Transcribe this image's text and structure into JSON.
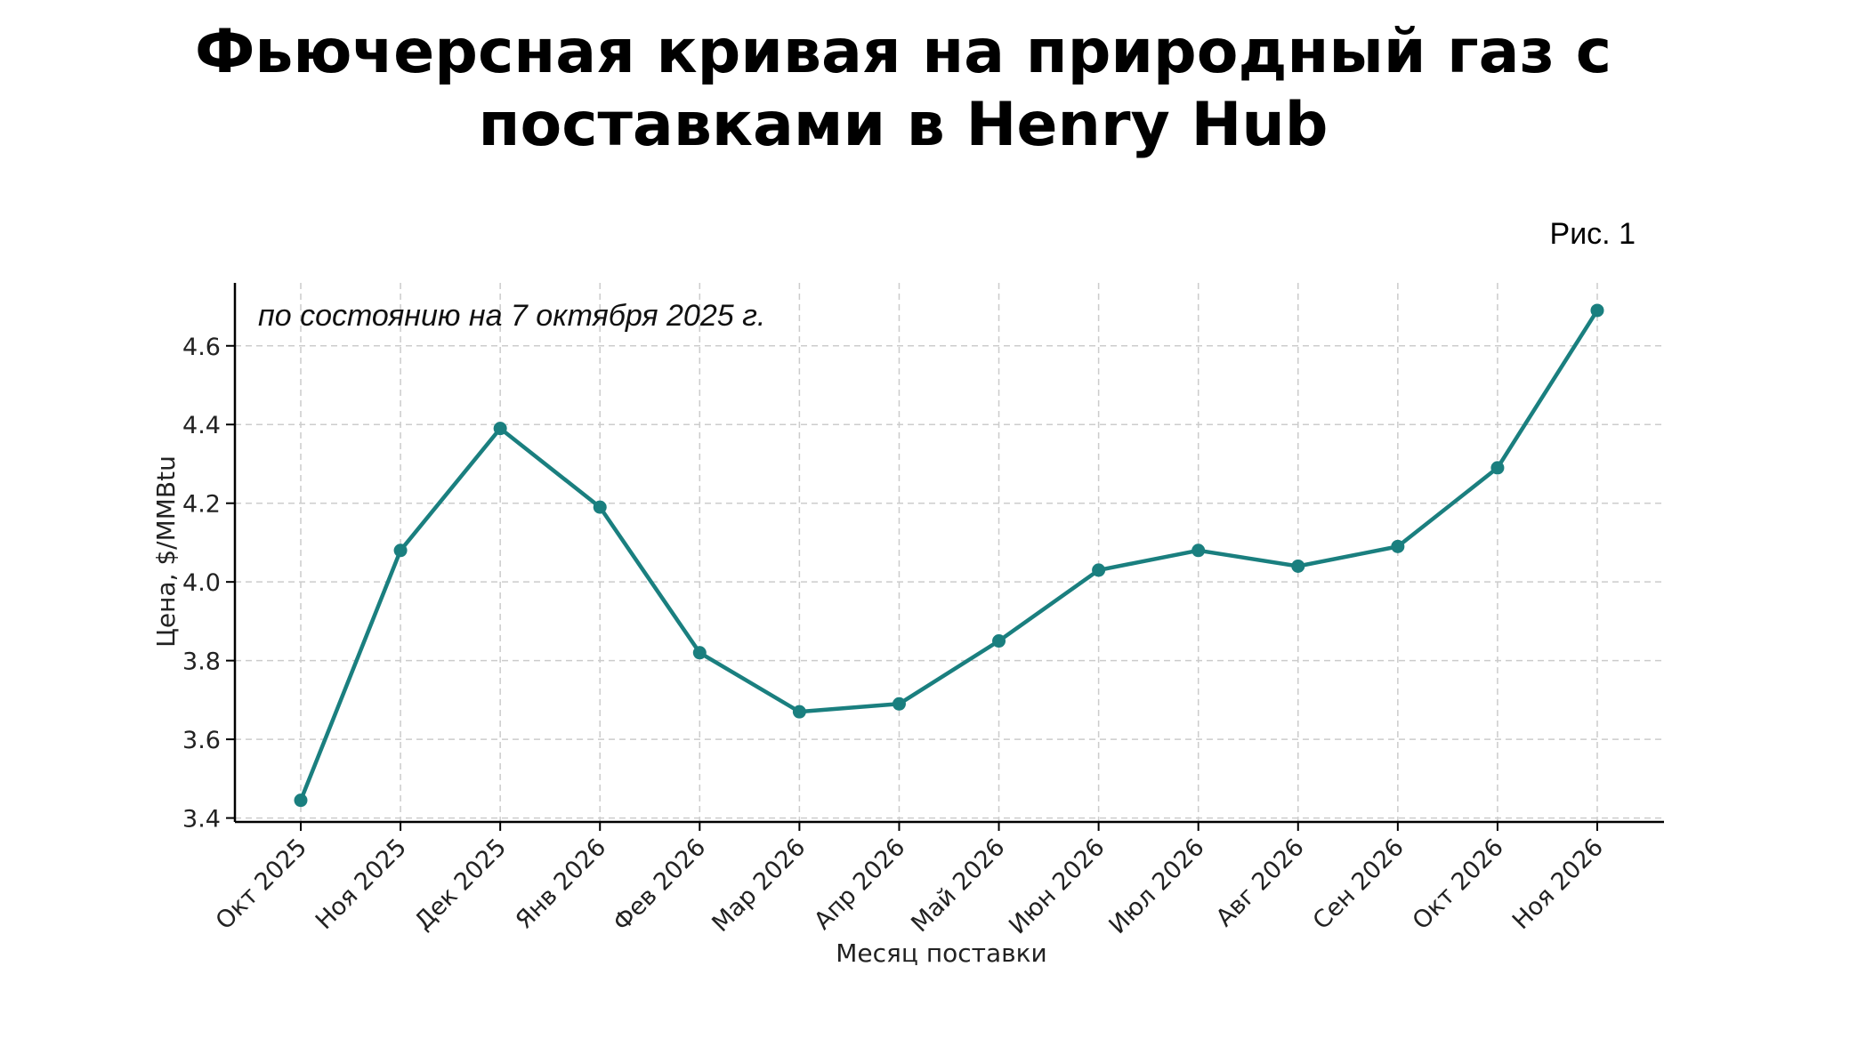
{
  "title_line1": "Фьючерсная кривая на природный газ с",
  "title_line2": "поставками в Henry Hub",
  "figure_label": "Рис. 1",
  "chart_data": {
    "type": "line",
    "annotation": "по состоянию на 7 октября 2025 г.",
    "xlabel": "Месяц поставки",
    "ylabel": "Цена, $/MMBtu",
    "categories": [
      "Окт 2025",
      "Ноя 2025",
      "Дек 2025",
      "Янв 2026",
      "Фев 2026",
      "Мар 2026",
      "Апр 2026",
      "Май 2026",
      "Июн 2026",
      "Июл 2026",
      "Авг 2026",
      "Сен 2026",
      "Окт 2026",
      "Ноя 2026"
    ],
    "series": [
      {
        "values": [
          3.445,
          4.08,
          4.39,
          4.19,
          3.82,
          3.67,
          3.69,
          3.85,
          4.03,
          4.08,
          4.04,
          4.09,
          4.29,
          4.69
        ]
      }
    ],
    "yticks": [
      "3.4",
      "3.6",
      "3.8",
      "4.0",
      "4.2",
      "4.4",
      "4.6"
    ],
    "ylim": [
      3.39,
      4.76
    ],
    "grid": true,
    "line_color": "#1a7f7f",
    "grid_color": "#cccccc"
  }
}
